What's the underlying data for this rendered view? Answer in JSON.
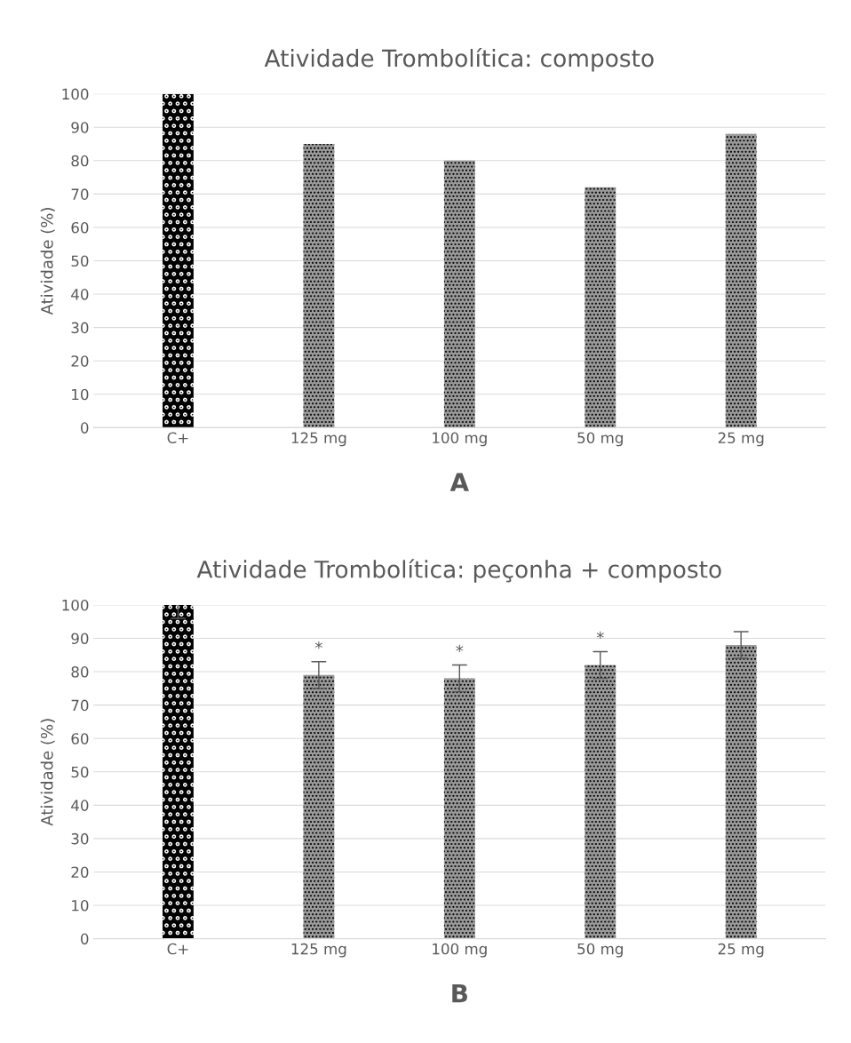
{
  "chart_data": [
    {
      "type": "bar",
      "title": "Atividade Trombolítica: composto",
      "ylabel": "Atividade (%)",
      "categories": [
        "C+",
        "125 mg",
        "100 mg",
        "50 mg",
        "25 mg"
      ],
      "values": [
        100,
        85,
        80,
        72,
        88
      ],
      "colors": [
        "#000000",
        "#9a9a9a",
        "#9a9a9a",
        "#9a9a9a",
        "#9a9a9a"
      ],
      "ylim": [
        0,
        100
      ],
      "yticks": [
        0,
        10,
        20,
        30,
        40,
        50,
        60,
        70,
        80,
        90,
        100
      ],
      "grid": "y",
      "annotations": [
        "A"
      ]
    },
    {
      "type": "bar",
      "title": "Atividade Trombolítica: peçonha + composto",
      "ylabel": "Atividade (%)",
      "categories": [
        "C+",
        "125 mg",
        "100 mg",
        "50 mg",
        "25 mg"
      ],
      "values": [
        100,
        79,
        78,
        82,
        88
      ],
      "errors": [
        4,
        4,
        4,
        4,
        4
      ],
      "colors": [
        "#000000",
        "#9a9a9a",
        "#9a9a9a",
        "#9a9a9a",
        "#9a9a9a"
      ],
      "ylim": [
        0,
        100
      ],
      "yticks": [
        0,
        10,
        20,
        30,
        40,
        50,
        60,
        70,
        80,
        90,
        100
      ],
      "grid": "y",
      "annotations": [
        {
          "text": "*",
          "x": "125 mg",
          "y": 79
        },
        {
          "text": "*",
          "x": "100 mg",
          "y": 78
        },
        {
          "text": "*",
          "x": "50 mg",
          "y": 82
        },
        "B"
      ]
    }
  ]
}
